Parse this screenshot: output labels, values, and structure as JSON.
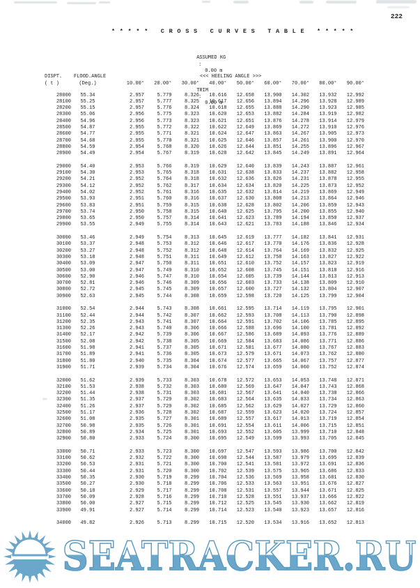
{
  "page": {
    "number": "222"
  },
  "title": "* * * * *   C R O S S   C U R V E S   T A B L E   * * * * *",
  "params": {
    "assumed_kg": {
      "label": "ASSUMED KG",
      "colon": ":",
      "value": "0.00 m"
    },
    "trim": {
      "label": "TRIM",
      "colon": ":",
      "value": "0.00 m"
    }
  },
  "table": {
    "header": {
      "col1_line1": "DISPT.",
      "col1_line2": "( t )",
      "col2_line1": "FLOOD.ANGLE",
      "col2_line2": "(Deg.)",
      "heeling_banner": "<<< HEELING ANGLE >>>",
      "angle_labels": [
        "10.00°",
        "20.00°",
        "30.00°",
        "40.00°",
        "50.00°",
        "60.00°",
        "70.00°",
        "80.00°",
        "90.00°"
      ]
    },
    "groups": [
      [
        {
          "d": "28000",
          "f": "55.34",
          "v": [
            "2.957",
            "5.779",
            "8.326",
            "10.616",
            "12.658",
            "13.900",
            "14.302",
            "13.932",
            "12.992"
          ]
        },
        {
          "d": "28100",
          "f": "55.25",
          "v": [
            "2.957",
            "5.777",
            "8.325",
            "10.617",
            "12.656",
            "13.894",
            "14.296",
            "13.928",
            "12.989"
          ]
        },
        {
          "d": "28200",
          "f": "55.15",
          "v": [
            "2.957",
            "5.776",
            "8.324",
            "10.618",
            "12.655",
            "13.888",
            "14.290",
            "13.923",
            "12.985"
          ]
        },
        {
          "d": "28300",
          "f": "55.06",
          "v": [
            "2.956",
            "5.775",
            "8.323",
            "10.620",
            "12.653",
            "13.882",
            "14.284",
            "13.919",
            "12.982"
          ]
        },
        {
          "d": "28400",
          "f": "54.96",
          "v": [
            "2.956",
            "5.773",
            "8.323",
            "10.621",
            "12.651",
            "13.876",
            "14.278",
            "13.914",
            "12.979"
          ]
        },
        {
          "d": "28500",
          "f": "54.87",
          "v": [
            "2.955",
            "5.772",
            "8.322",
            "10.622",
            "12.649",
            "13.869",
            "14.272",
            "13.910",
            "12.976"
          ]
        },
        {
          "d": "28600",
          "f": "54.77",
          "v": [
            "2.955",
            "5.771",
            "8.321",
            "10.624",
            "12.647",
            "13.863",
            "14.267",
            "13.905",
            "12.973"
          ]
        },
        {
          "d": "28700",
          "f": "54.68",
          "v": [
            "2.955",
            "5.770",
            "8.321",
            "10.625",
            "12.646",
            "13.857",
            "14.261",
            "13.900",
            "12.970"
          ]
        },
        {
          "d": "28800",
          "f": "54.59",
          "v": [
            "2.954",
            "5.768",
            "8.320",
            "10.626",
            "12.644",
            "13.851",
            "14.255",
            "13.896",
            "12.967"
          ]
        },
        {
          "d": "28900",
          "f": "54.49",
          "v": [
            "2.954",
            "5.767",
            "8.319",
            "10.628",
            "12.642",
            "13.845",
            "14.249",
            "13.891",
            "12.964"
          ]
        }
      ],
      [
        {
          "d": "29000",
          "f": "54.40",
          "v": [
            "2.953",
            "5.766",
            "8.319",
            "10.629",
            "12.640",
            "13.839",
            "14.243",
            "13.887",
            "12.961"
          ]
        },
        {
          "d": "29100",
          "f": "54.30",
          "v": [
            "2.953",
            "5.765",
            "8.318",
            "10.631",
            "12.638",
            "13.833",
            "14.237",
            "13.882",
            "12.958"
          ]
        },
        {
          "d": "29200",
          "f": "54.21",
          "v": [
            "2.952",
            "5.764",
            "8.318",
            "10.632",
            "12.636",
            "13.826",
            "14.231",
            "13.878",
            "12.955"
          ]
        },
        {
          "d": "29300",
          "f": "54.12",
          "v": [
            "2.952",
            "5.762",
            "8.317",
            "10.634",
            "12.634",
            "13.820",
            "14.225",
            "13.873",
            "12.952"
          ]
        },
        {
          "d": "29400",
          "f": "54.02",
          "v": [
            "2.952",
            "5.761",
            "8.316",
            "10.635",
            "12.632",
            "13.814",
            "14.219",
            "13.869",
            "12.949"
          ]
        },
        {
          "d": "29500",
          "f": "53.93",
          "v": [
            "2.951",
            "5.760",
            "8.316",
            "10.637",
            "12.630",
            "13.808",
            "14.213",
            "13.864",
            "12.946"
          ]
        },
        {
          "d": "29600",
          "f": "53.83",
          "v": [
            "2.951",
            "5.759",
            "8.315",
            "10.638",
            "12.628",
            "13.802",
            "14.206",
            "13.859",
            "12.943"
          ]
        },
        {
          "d": "29700",
          "f": "53.74",
          "v": [
            "2.950",
            "5.758",
            "8.315",
            "10.640",
            "12.625",
            "13.795",
            "14.200",
            "13.855",
            "12.940"
          ]
        },
        {
          "d": "29800",
          "f": "53.65",
          "v": [
            "2.950",
            "5.757",
            "8.314",
            "10.641",
            "12.623",
            "13.789",
            "14.194",
            "13.850",
            "12.937"
          ]
        },
        {
          "d": "29900",
          "f": "53.55",
          "v": [
            "2.949",
            "5.755",
            "8.314",
            "10.643",
            "12.621",
            "13.783",
            "14.188",
            "13.846",
            "12.934"
          ]
        }
      ],
      [
        {
          "d": "30000",
          "f": "53.46",
          "v": [
            "2.949",
            "5.754",
            "8.313",
            "10.645",
            "12.619",
            "13.777",
            "14.182",
            "13.841",
            "12.931"
          ]
        },
        {
          "d": "30100",
          "f": "53.37",
          "v": [
            "2.948",
            "5.753",
            "8.312",
            "10.646",
            "12.617",
            "13.770",
            "14.176",
            "13.836",
            "12.928"
          ]
        },
        {
          "d": "30200",
          "f": "53.27",
          "v": [
            "2.948",
            "5.752",
            "8.312",
            "10.648",
            "12.614",
            "13.764",
            "14.169",
            "13.832",
            "12.925"
          ]
        },
        {
          "d": "30300",
          "f": "53.18",
          "v": [
            "2.948",
            "5.751",
            "8.311",
            "10.649",
            "12.612",
            "13.758",
            "14.163",
            "13.827",
            "12.922"
          ]
        },
        {
          "d": "30400",
          "f": "53.09",
          "v": [
            "2.947",
            "5.750",
            "8.311",
            "10.651",
            "12.610",
            "13.752",
            "14.157",
            "13.823",
            "12.919"
          ]
        },
        {
          "d": "30500",
          "f": "53.00",
          "v": [
            "2.947",
            "5.749",
            "8.310",
            "10.652",
            "12.608",
            "13.745",
            "14.151",
            "13.818",
            "12.916"
          ]
        },
        {
          "d": "30600",
          "f": "52.90",
          "v": [
            "2.946",
            "5.747",
            "8.310",
            "10.654",
            "12.605",
            "13.739",
            "14.144",
            "13.813",
            "12.913"
          ]
        },
        {
          "d": "30700",
          "f": "52.81",
          "v": [
            "2.946",
            "5.746",
            "8.309",
            "10.656",
            "12.603",
            "13.733",
            "14.138",
            "13.809",
            "12.910"
          ]
        },
        {
          "d": "30800",
          "f": "52.72",
          "v": [
            "2.945",
            "5.745",
            "8.309",
            "10.657",
            "12.600",
            "13.727",
            "14.132",
            "13.804",
            "12.907"
          ]
        },
        {
          "d": "30900",
          "f": "52.63",
          "v": [
            "2.945",
            "5.744",
            "8.308",
            "10.659",
            "12.598",
            "13.720",
            "14.125",
            "13.799",
            "12.904"
          ]
        }
      ],
      [
        {
          "d": "31000",
          "f": "52.54",
          "v": [
            "2.944",
            "5.743",
            "8.308",
            "10.661",
            "12.595",
            "13.714",
            "14.119",
            "13.795",
            "12.901"
          ]
        },
        {
          "d": "31100",
          "f": "52.44",
          "v": [
            "2.944",
            "5.742",
            "8.307",
            "10.662",
            "12.593",
            "13.708",
            "14.113",
            "13.790",
            "12.898"
          ]
        },
        {
          "d": "31200",
          "f": "52.35",
          "v": [
            "2.943",
            "5.741",
            "8.307",
            "10.664",
            "12.591",
            "13.702",
            "14.106",
            "13.785",
            "12.895"
          ]
        },
        {
          "d": "31300",
          "f": "52.26",
          "v": [
            "2.943",
            "5.740",
            "8.306",
            "10.666",
            "12.588",
            "13.696",
            "14.100",
            "13.781",
            "12.892"
          ]
        },
        {
          "d": "31400",
          "f": "52.17",
          "v": [
            "2.942",
            "5.739",
            "8.306",
            "10.667",
            "12.586",
            "13.689",
            "14.093",
            "13.776",
            "12.889"
          ]
        },
        {
          "d": "31500",
          "f": "52.08",
          "v": [
            "2.942",
            "5.738",
            "8.305",
            "10.669",
            "12.584",
            "13.683",
            "14.086",
            "13.771",
            "12.886"
          ]
        },
        {
          "d": "31600",
          "f": "51.98",
          "v": [
            "2.941",
            "5.737",
            "8.305",
            "10.671",
            "12.581",
            "13.677",
            "14.080",
            "13.767",
            "12.883"
          ]
        },
        {
          "d": "31700",
          "f": "51.89",
          "v": [
            "2.941",
            "5.736",
            "8.305",
            "10.673",
            "12.579",
            "13.671",
            "14.073",
            "13.762",
            "12.880"
          ]
        },
        {
          "d": "31800",
          "f": "51.80",
          "v": [
            "2.940",
            "5.735",
            "8.304",
            "10.674",
            "12.577",
            "13.665",
            "14.067",
            "13.757",
            "12.877"
          ]
        },
        {
          "d": "31900",
          "f": "51.71",
          "v": [
            "2.939",
            "5.734",
            "8.304",
            "10.676",
            "12.574",
            "13.659",
            "14.060",
            "13.752",
            "12.874"
          ]
        }
      ],
      [
        {
          "d": "32000",
          "f": "51.62",
          "v": [
            "2.939",
            "5.733",
            "8.303",
            "10.678",
            "12.572",
            "13.653",
            "14.053",
            "13.748",
            "12.871"
          ]
        },
        {
          "d": "32100",
          "f": "51.53",
          "v": [
            "2.938",
            "5.732",
            "8.303",
            "10.680",
            "12.569",
            "13.647",
            "14.047",
            "13.743",
            "12.868"
          ]
        },
        {
          "d": "32200",
          "f": "51.44",
          "v": [
            "2.938",
            "5.731",
            "8.303",
            "10.681",
            "12.567",
            "13.641",
            "14.040",
            "13.738",
            "12.866"
          ]
        },
        {
          "d": "32300",
          "f": "51.35",
          "v": [
            "2.937",
            "5.729",
            "8.302",
            "10.683",
            "12.564",
            "13.635",
            "14.033",
            "13.734",
            "12.863"
          ]
        },
        {
          "d": "32400",
          "f": "51.26",
          "v": [
            "2.937",
            "5.729",
            "8.302",
            "10.685",
            "12.562",
            "13.629",
            "14.027",
            "13.729",
            "12.860"
          ]
        },
        {
          "d": "32500",
          "f": "51.17",
          "v": [
            "2.936",
            "5.728",
            "8.302",
            "10.687",
            "12.559",
            "13.623",
            "14.020",
            "13.724",
            "12.857"
          ]
        },
        {
          "d": "32600",
          "f": "51.08",
          "v": [
            "2.935",
            "5.727",
            "8.301",
            "10.689",
            "12.557",
            "13.617",
            "14.013",
            "13.719",
            "12.854"
          ]
        },
        {
          "d": "32700",
          "f": "50.98",
          "v": [
            "2.935",
            "5.726",
            "8.301",
            "10.691",
            "12.554",
            "13.611",
            "14.006",
            "13.715",
            "12.851"
          ]
        },
        {
          "d": "32800",
          "f": "50.89",
          "v": [
            "2.934",
            "5.725",
            "8.301",
            "10.693",
            "12.552",
            "13.605",
            "13.999",
            "13.710",
            "12.848"
          ]
        },
        {
          "d": "32900",
          "f": "50.80",
          "v": [
            "2.933",
            "5.724",
            "8.300",
            "10.695",
            "12.549",
            "13.599",
            "13.993",
            "13.705",
            "12.845"
          ]
        }
      ],
      [
        {
          "d": "33000",
          "f": "50.71",
          "v": [
            "2.933",
            "5.723",
            "8.300",
            "10.697",
            "12.547",
            "13.593",
            "13.986",
            "13.700",
            "12.842"
          ]
        },
        {
          "d": "33100",
          "f": "50.62",
          "v": [
            "2.932",
            "5.722",
            "8.300",
            "10.698",
            "12.544",
            "13.587",
            "13.979",
            "13.695",
            "12.839"
          ]
        },
        {
          "d": "33200",
          "f": "50.53",
          "v": [
            "2.931",
            "5.721",
            "8.300",
            "10.700",
            "12.541",
            "13.581",
            "13.972",
            "13.691",
            "12.836"
          ]
        },
        {
          "d": "33300",
          "f": "50.44",
          "v": [
            "2.931",
            "5.720",
            "8.300",
            "10.702",
            "12.539",
            "13.575",
            "13.965",
            "13.686",
            "12.833"
          ]
        },
        {
          "d": "33400",
          "f": "50.35",
          "v": [
            "2.930",
            "5.719",
            "8.299",
            "10.704",
            "12.536",
            "13.569",
            "13.958",
            "13.681",
            "12.830"
          ]
        },
        {
          "d": "33500",
          "f": "50.27",
          "v": [
            "2.930",
            "5.718",
            "8.299",
            "10.706",
            "12.533",
            "13.563",
            "13.951",
            "13.676",
            "12.827"
          ]
        },
        {
          "d": "33600",
          "f": "50.18",
          "v": [
            "2.929",
            "5.717",
            "8.299",
            "10.708",
            "12.531",
            "13.557",
            "13.944",
            "13.671",
            "12.825"
          ]
        },
        {
          "d": "33700",
          "f": "50.09",
          "v": [
            "2.928",
            "5.716",
            "8.299",
            "10.710",
            "12.528",
            "13.551",
            "13.937",
            "13.666",
            "12.822"
          ]
        },
        {
          "d": "33800",
          "f": "50.00",
          "v": [
            "2.927",
            "5.715",
            "8.299",
            "10.712",
            "12.525",
            "13.545",
            "13.930",
            "13.662",
            "12.819"
          ]
        },
        {
          "d": "33900",
          "f": "49.91",
          "v": [
            "2.927",
            "5.714",
            "8.299",
            "10.714",
            "12.523",
            "13.540",
            "13.923",
            "13.657",
            "12.816"
          ]
        }
      ],
      [
        {
          "d": "34000",
          "f": "49.82",
          "v": [
            "2.926",
            "5.713",
            "8.299",
            "10.715",
            "12.520",
            "13.534",
            "13.916",
            "13.652",
            "12.813"
          ]
        }
      ]
    ]
  },
  "watermark": {
    "text": "SEATRACKER.RU",
    "logo": "sun-over-sea",
    "fill_blue": "#6ba6cb",
    "stroke_blue": "#5d9cc2"
  },
  "colors": {
    "background": "#ffffff",
    "text": "#222222",
    "watermark": "#6ba6cb"
  }
}
